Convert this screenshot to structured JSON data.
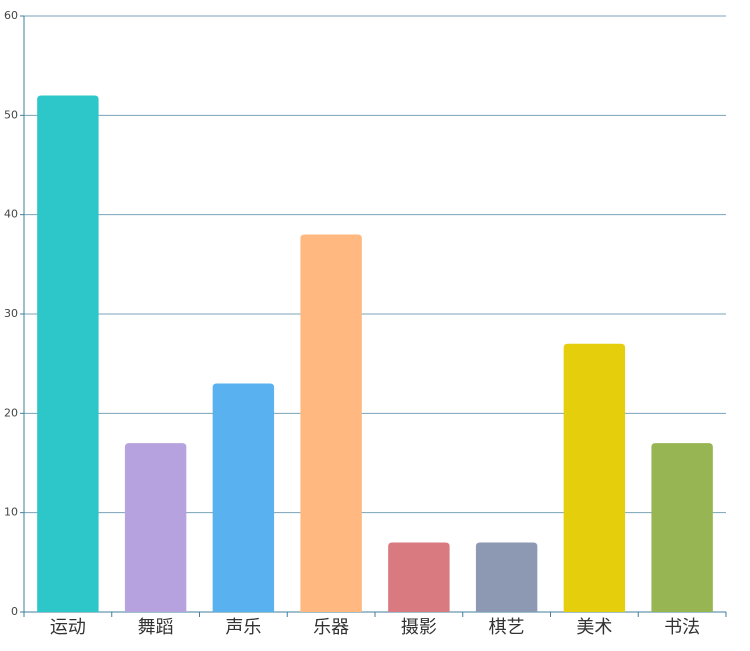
{
  "chart_data": {
    "type": "bar",
    "categories": [
      "运动",
      "舞蹈",
      "声乐",
      "乐器",
      "摄影",
      "棋艺",
      "美术",
      "书法"
    ],
    "values": [
      52,
      17,
      23,
      38,
      7,
      7,
      27,
      17
    ],
    "colors": [
      "#2ec7c9",
      "#b6a2de",
      "#5ab1ef",
      "#ffb980",
      "#d87a80",
      "#8d98b3",
      "#e5cf0d",
      "#97b552"
    ],
    "ylim": [
      0,
      60
    ],
    "yticks": [
      0,
      10,
      20,
      30,
      40,
      50,
      60
    ],
    "grid": true
  }
}
